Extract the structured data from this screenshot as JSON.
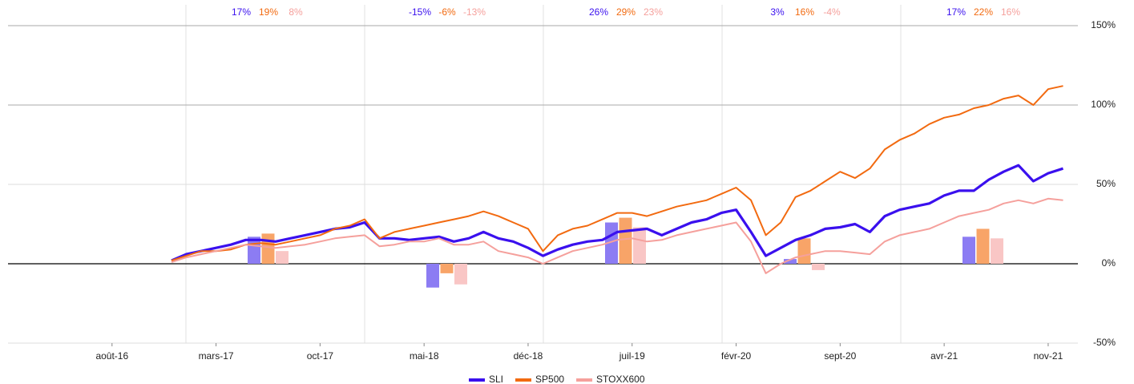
{
  "chart_data": [
    {
      "type": "line",
      "x": [
        "2016-12",
        "2017-01",
        "2017-02",
        "2017-03",
        "2017-04",
        "2017-05",
        "2017-06",
        "2017-07",
        "2017-08",
        "2017-09",
        "2017-10",
        "2017-11",
        "2017-12",
        "2018-01",
        "2018-02",
        "2018-03",
        "2018-04",
        "2018-05",
        "2018-06",
        "2018-07",
        "2018-08",
        "2018-09",
        "2018-10",
        "2018-11",
        "2018-12",
        "2019-01",
        "2019-02",
        "2019-03",
        "2019-04",
        "2019-05",
        "2019-06",
        "2019-07",
        "2019-08",
        "2019-09",
        "2019-10",
        "2019-11",
        "2019-12",
        "2020-01",
        "2020-02",
        "2020-03",
        "2020-04",
        "2020-05",
        "2020-06",
        "2020-07",
        "2020-08",
        "2020-09",
        "2020-10",
        "2020-11",
        "2020-12",
        "2021-01",
        "2021-02",
        "2021-03",
        "2021-04",
        "2021-05",
        "2021-06",
        "2021-07",
        "2021-08",
        "2021-09",
        "2021-10",
        "2021-11",
        "2021-12"
      ],
      "series": [
        {
          "name": "SLI",
          "color": "#3a10ee",
          "width": 3.2,
          "values": [
            2,
            6,
            8,
            10,
            12,
            15,
            15,
            14,
            16,
            18,
            20,
            22,
            23,
            26,
            16,
            16,
            15,
            16,
            17,
            14,
            16,
            20,
            16,
            14,
            10,
            5,
            9,
            12,
            14,
            15,
            20,
            21,
            22,
            18,
            22,
            26,
            28,
            32,
            34,
            20,
            5,
            10,
            15,
            18,
            22,
            23,
            25,
            20,
            30,
            34,
            36,
            38,
            43,
            46,
            46,
            53,
            58,
            62,
            52,
            57,
            60
          ]
        },
        {
          "name": "SP500",
          "color": "#f26a10",
          "width": 2,
          "values": [
            2,
            5,
            8,
            8,
            9,
            12,
            13,
            12,
            14,
            16,
            18,
            22,
            24,
            28,
            16,
            20,
            22,
            24,
            26,
            28,
            30,
            33,
            30,
            26,
            22,
            8,
            18,
            22,
            24,
            28,
            32,
            32,
            30,
            33,
            36,
            38,
            40,
            44,
            48,
            40,
            18,
            26,
            42,
            46,
            52,
            58,
            54,
            60,
            72,
            78,
            82,
            88,
            92,
            94,
            98,
            100,
            104,
            106,
            100,
            110,
            112
          ]
        },
        {
          "name": "STOXX600",
          "color": "#f5a09c",
          "width": 2,
          "values": [
            1,
            4,
            6,
            8,
            10,
            12,
            11,
            10,
            11,
            12,
            14,
            16,
            17,
            18,
            11,
            12,
            14,
            14,
            16,
            12,
            12,
            14,
            8,
            6,
            4,
            0,
            4,
            8,
            10,
            12,
            15,
            16,
            14,
            15,
            18,
            20,
            22,
            24,
            26,
            14,
            -6,
            0,
            4,
            6,
            8,
            8,
            7,
            6,
            14,
            18,
            20,
            22,
            26,
            30,
            32,
            34,
            38,
            40,
            38,
            41,
            40
          ]
        }
      ],
      "xlim": [
        "2016-01",
        "2022-01"
      ],
      "xticks": [
        {
          "value": "2016-08",
          "label": "août-16"
        },
        {
          "value": "2017-03",
          "label": "mars-17"
        },
        {
          "value": "2017-10",
          "label": "oct-17"
        },
        {
          "value": "2018-05",
          "label": "mai-18"
        },
        {
          "value": "2018-12",
          "label": "déc-18"
        },
        {
          "value": "2019-07",
          "label": "juil-19"
        },
        {
          "value": "2020-02",
          "label": "févr-20"
        },
        {
          "value": "2020-09",
          "label": "sept-20"
        },
        {
          "value": "2021-04",
          "label": "avr-21"
        },
        {
          "value": "2021-11",
          "label": "nov-21"
        }
      ],
      "ylim": [
        -50,
        150
      ],
      "yticks": [
        {
          "value": -50,
          "label": "-50%"
        },
        {
          "value": 0,
          "label": "0%"
        },
        {
          "value": 50,
          "label": "50%"
        },
        {
          "value": 100,
          "label": "100%"
        },
        {
          "value": 150,
          "label": "150%"
        }
      ],
      "legend": "bottom"
    },
    {
      "type": "bar",
      "categories": [
        null,
        null,
        null,
        null,
        null
      ],
      "series": [
        {
          "color": "#8c7cf3",
          "values": [
            17,
            -15,
            26,
            3,
            17
          ],
          "value_labels": [
            "17%",
            "-15%",
            "26%",
            "3%",
            "17%"
          ]
        },
        {
          "color": "#f8a468",
          "values": [
            19,
            -6,
            29,
            16,
            22
          ],
          "value_labels": [
            "19%",
            "-6%",
            "29%",
            "16%",
            "22%"
          ]
        },
        {
          "color": "#f9c6c5",
          "values": [
            8,
            -13,
            23,
            -4,
            16
          ],
          "value_labels": [
            "8%",
            "-13%",
            "23%",
            "-4%",
            "16%"
          ]
        }
      ]
    }
  ]
}
